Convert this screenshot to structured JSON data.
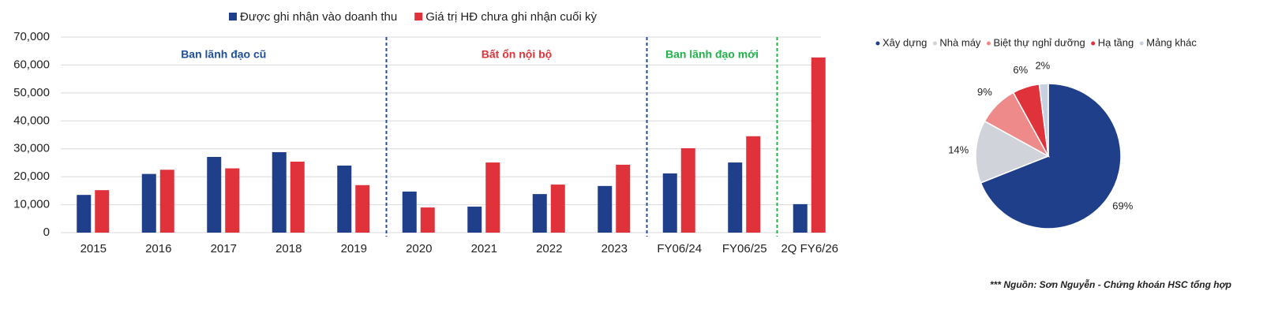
{
  "chart_data": [
    {
      "type": "bar",
      "categories": [
        "2015",
        "2016",
        "2017",
        "2018",
        "2019",
        "2020",
        "2021",
        "2022",
        "2023",
        "FY06/24",
        "FY06/25",
        "2Q FY6/26"
      ],
      "series": [
        {
          "name": "Được ghi nhận vào doanh thu",
          "color": "#1f3f8a",
          "values": [
            13500,
            21000,
            27100,
            28800,
            24000,
            14700,
            9300,
            13800,
            16700,
            21200,
            25100,
            10200
          ]
        },
        {
          "name": "Giá trị HĐ chưa ghi nhận cuối kỳ",
          "color": "#e0323a",
          "values": [
            15200,
            22500,
            23000,
            25400,
            17000,
            9000,
            25100,
            17200,
            24300,
            30200,
            34500,
            62700
          ]
        }
      ],
      "ylim": [
        0,
        70000
      ],
      "yticks": [
        0,
        {
          "value": 10000,
          "label": "10,000"
        },
        {
          "value": 20000,
          "label": "20,000"
        },
        {
          "value": 30000,
          "label": "30,000"
        },
        {
          "value": 40000,
          "label": "40,000"
        },
        {
          "value": 50000,
          "label": "50,000"
        },
        {
          "value": 60000,
          "label": "60,000"
        },
        {
          "value": 70000,
          "label": "70,000"
        }
      ],
      "grid": true,
      "periods": [
        {
          "label": "Ban lãnh đạo cũ",
          "color": "#1f4e9c",
          "from": "2015",
          "to": "2019"
        },
        {
          "label": "Bất ổn nội bộ",
          "color": "#e0323a",
          "from": "2020",
          "to": "2023"
        },
        {
          "label": "Ban lãnh đạo mới",
          "color": "#22b04b",
          "from": "FY06/24",
          "to": "FY06/25"
        }
      ],
      "dividers": [
        {
          "after": "2019",
          "color": "#1f4e9c"
        },
        {
          "after": "2023",
          "color": "#1f4e9c"
        },
        {
          "after": "FY06/25",
          "color": "#22b04b"
        }
      ]
    },
    {
      "type": "pie",
      "categories": [
        "Xây dựng",
        "Nhà máy",
        "Biệt thự nghỉ dưỡng",
        "Hạ tầng",
        "Mảng khác"
      ],
      "values": [
        69,
        14,
        9,
        6,
        2
      ],
      "value_labels": [
        "69%",
        "14%",
        "9%",
        "6%",
        "2%"
      ],
      "colors": [
        "#1f3f8a",
        "#d0d3da",
        "#ef8a8a",
        "#e0323a",
        "#c8d0e0"
      ]
    }
  ],
  "source": "*** Nguồn: Sơn Nguyễn - Chứng khoán HSC tổng hợp"
}
